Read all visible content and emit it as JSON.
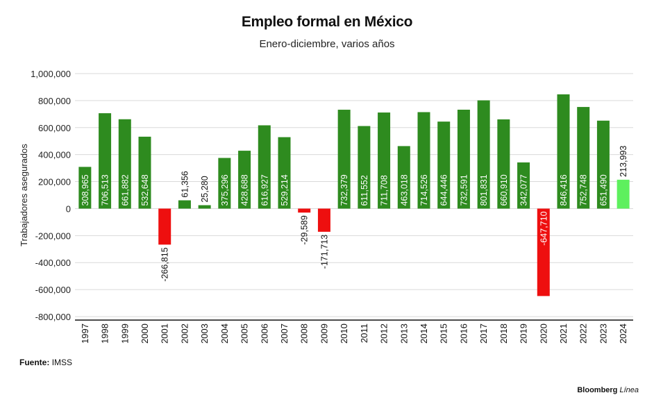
{
  "header": {
    "title": "Empleo formal en México",
    "subtitle": "Enero-diciembre, varios años"
  },
  "footer": {
    "source_label": "Fuente:",
    "source_value": "IMSS",
    "brand_main": "Bloomberg",
    "brand_accent": "Línea"
  },
  "colors": {
    "positive": "#2e8b1f",
    "negative": "#ee0f0f",
    "highlight": "#5ef05e",
    "grid": "#d9d9d9"
  },
  "chart_data": {
    "type": "bar",
    "title": "Empleo formal en México",
    "subtitle": "Enero-diciembre, varios años",
    "xlabel": "",
    "ylabel": "Trabajadores asegurados",
    "ylim": [
      -800000,
      1000000
    ],
    "yticks": [
      1000000,
      800000,
      600000,
      400000,
      200000,
      0,
      -200000,
      -400000,
      -600000,
      -800000
    ],
    "ytick_labels": [
      "1,000,000",
      "800,000",
      "600,000",
      "400,000",
      "200,000",
      "0",
      "-200,000",
      "-400,000",
      "-600,000",
      "-800,000"
    ],
    "grid": true,
    "categories": [
      "1997",
      "1998",
      "1999",
      "2000",
      "2001",
      "2002",
      "2003",
      "2004",
      "2005",
      "2006",
      "2007",
      "2008",
      "2009",
      "2010",
      "2011",
      "2012",
      "2013",
      "2014",
      "2015",
      "2016",
      "2017",
      "2018",
      "2019",
      "2020",
      "2021",
      "2022",
      "2023",
      "2024"
    ],
    "values": [
      308965,
      706513,
      661882,
      532648,
      -266815,
      61356,
      25280,
      375296,
      428688,
      616927,
      529214,
      -29589,
      -171713,
      732379,
      611552,
      711708,
      463018,
      714526,
      644446,
      732591,
      801831,
      660910,
      342077,
      -647710,
      846416,
      752748,
      651490,
      213993
    ],
    "labels": [
      "308,965",
      "706,513",
      "661,882",
      "532,648",
      "-266,815",
      "61,356",
      "25,280",
      "375,296",
      "428,688",
      "616,927",
      "529,214",
      "-29,589",
      "-171,713",
      "732,379",
      "611,552",
      "711,708",
      "463,018",
      "714,526",
      "644,446",
      "732,591",
      "801,831",
      "660,910",
      "342,077",
      "-647,710",
      "846,416",
      "752,748",
      "651,490",
      "213,993"
    ],
    "highlight_category": "2024"
  }
}
